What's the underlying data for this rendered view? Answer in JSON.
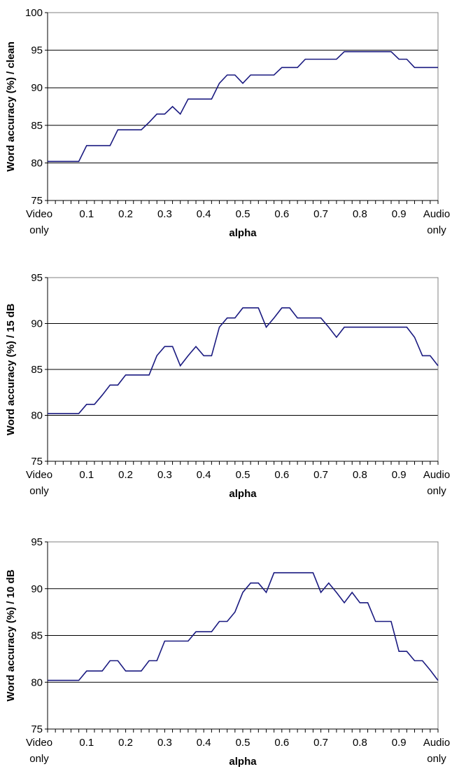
{
  "chart_data": [
    {
      "type": "line",
      "xlabel": "alpha",
      "ylabel": "Word accuracy (%) / clean",
      "ylim": [
        75,
        100
      ],
      "yticks": [
        75,
        80,
        85,
        90,
        95,
        100
      ],
      "xlim": [
        0,
        1
      ],
      "x_ticklabels": [
        {
          "x": 0,
          "lines": [
            "Video",
            "only"
          ]
        },
        {
          "x": 0.1,
          "lines": [
            "0.1"
          ]
        },
        {
          "x": 0.2,
          "lines": [
            "0.2"
          ]
        },
        {
          "x": 0.3,
          "lines": [
            "0.3"
          ]
        },
        {
          "x": 0.4,
          "lines": [
            "0.4"
          ]
        },
        {
          "x": 0.5,
          "lines": [
            "0.5"
          ]
        },
        {
          "x": 0.6,
          "lines": [
            "0.6"
          ]
        },
        {
          "x": 0.7,
          "lines": [
            "0.7"
          ]
        },
        {
          "x": 0.8,
          "lines": [
            "0.8"
          ]
        },
        {
          "x": 0.9,
          "lines": [
            "0.9"
          ]
        },
        {
          "x": 1,
          "lines": [
            "Audio",
            "only"
          ]
        }
      ],
      "grid": "horizontal",
      "color": "#1a1a80",
      "x": [
        0,
        0.02,
        0.04,
        0.06,
        0.08,
        0.1,
        0.12,
        0.14,
        0.16,
        0.18,
        0.2,
        0.22,
        0.24,
        0.26,
        0.28,
        0.3,
        0.32,
        0.34,
        0.36,
        0.38,
        0.4,
        0.42,
        0.44,
        0.46,
        0.48,
        0.5,
        0.52,
        0.54,
        0.56,
        0.58,
        0.6,
        0.62,
        0.64,
        0.66,
        0.68,
        0.7,
        0.72,
        0.74,
        0.76,
        0.78,
        0.8,
        0.82,
        0.84,
        0.86,
        0.88,
        0.9,
        0.92,
        0.94,
        0.96,
        0.98,
        1
      ],
      "values": [
        80.2,
        80.2,
        80.2,
        80.2,
        80.2,
        82.3,
        82.3,
        82.3,
        82.3,
        84.4,
        84.4,
        84.4,
        84.4,
        85.4,
        86.5,
        86.5,
        87.5,
        86.5,
        88.5,
        88.5,
        88.5,
        88.5,
        90.6,
        91.7,
        91.7,
        90.6,
        91.7,
        91.7,
        91.7,
        91.7,
        92.7,
        92.7,
        92.7,
        93.8,
        93.8,
        93.8,
        93.8,
        93.8,
        94.8,
        94.8,
        94.8,
        94.8,
        94.8,
        94.8,
        94.8,
        93.8,
        93.8,
        92.7,
        92.7,
        92.7,
        92.7
      ]
    },
    {
      "type": "line",
      "xlabel": "alpha",
      "ylabel": "Word accuracy (%) / 15 dB",
      "ylim": [
        75,
        95
      ],
      "yticks": [
        75,
        80,
        85,
        90,
        95
      ],
      "xlim": [
        0,
        1
      ],
      "x_ticklabels": [
        {
          "x": 0,
          "lines": [
            "Video",
            "only"
          ]
        },
        {
          "x": 0.1,
          "lines": [
            "0.1"
          ]
        },
        {
          "x": 0.2,
          "lines": [
            "0.2"
          ]
        },
        {
          "x": 0.3,
          "lines": [
            "0.3"
          ]
        },
        {
          "x": 0.4,
          "lines": [
            "0.4"
          ]
        },
        {
          "x": 0.5,
          "lines": [
            "0.5"
          ]
        },
        {
          "x": 0.6,
          "lines": [
            "0.6"
          ]
        },
        {
          "x": 0.7,
          "lines": [
            "0.7"
          ]
        },
        {
          "x": 0.8,
          "lines": [
            "0.8"
          ]
        },
        {
          "x": 0.9,
          "lines": [
            "0.9"
          ]
        },
        {
          "x": 1,
          "lines": [
            "Audio",
            "only"
          ]
        }
      ],
      "grid": "horizontal",
      "color": "#1a1a80",
      "x": [
        0,
        0.02,
        0.04,
        0.06,
        0.08,
        0.1,
        0.12,
        0.14,
        0.16,
        0.18,
        0.2,
        0.22,
        0.24,
        0.26,
        0.28,
        0.3,
        0.32,
        0.34,
        0.36,
        0.38,
        0.4,
        0.42,
        0.44,
        0.46,
        0.48,
        0.5,
        0.52,
        0.54,
        0.56,
        0.58,
        0.6,
        0.62,
        0.64,
        0.66,
        0.68,
        0.7,
        0.72,
        0.74,
        0.76,
        0.78,
        0.8,
        0.82,
        0.84,
        0.86,
        0.88,
        0.9,
        0.92,
        0.94,
        0.96,
        0.98,
        1
      ],
      "values": [
        80.2,
        80.2,
        80.2,
        80.2,
        80.2,
        81.2,
        81.2,
        82.2,
        83.3,
        83.3,
        84.4,
        84.4,
        84.4,
        84.4,
        86.5,
        87.5,
        87.5,
        85.4,
        86.5,
        87.5,
        86.5,
        86.5,
        89.6,
        90.6,
        90.6,
        91.7,
        91.7,
        91.7,
        89.6,
        90.6,
        91.7,
        91.7,
        90.6,
        90.6,
        90.6,
        90.6,
        89.6,
        88.5,
        89.6,
        89.6,
        89.6,
        89.6,
        89.6,
        89.6,
        89.6,
        89.6,
        89.6,
        88.5,
        86.5,
        86.5,
        85.4
      ]
    },
    {
      "type": "line",
      "xlabel": "alpha",
      "ylabel": "Word accuracy (%) / 10 dB",
      "ylim": [
        75,
        95
      ],
      "yticks": [
        75,
        80,
        85,
        90,
        95
      ],
      "xlim": [
        0,
        1
      ],
      "x_ticklabels": [
        {
          "x": 0,
          "lines": [
            "Video",
            "only"
          ]
        },
        {
          "x": 0.1,
          "lines": [
            "0.1"
          ]
        },
        {
          "x": 0.2,
          "lines": [
            "0.2"
          ]
        },
        {
          "x": 0.3,
          "lines": [
            "0.3"
          ]
        },
        {
          "x": 0.4,
          "lines": [
            "0.4"
          ]
        },
        {
          "x": 0.5,
          "lines": [
            "0.5"
          ]
        },
        {
          "x": 0.6,
          "lines": [
            "0.6"
          ]
        },
        {
          "x": 0.7,
          "lines": [
            "0.7"
          ]
        },
        {
          "x": 0.8,
          "lines": [
            "0.8"
          ]
        },
        {
          "x": 0.9,
          "lines": [
            "0.9"
          ]
        },
        {
          "x": 1,
          "lines": [
            "Audio",
            "only"
          ]
        }
      ],
      "grid": "horizontal",
      "color": "#1a1a80",
      "x": [
        0,
        0.02,
        0.04,
        0.06,
        0.08,
        0.1,
        0.12,
        0.14,
        0.16,
        0.18,
        0.2,
        0.22,
        0.24,
        0.26,
        0.28,
        0.3,
        0.32,
        0.34,
        0.36,
        0.38,
        0.4,
        0.42,
        0.44,
        0.46,
        0.48,
        0.5,
        0.52,
        0.54,
        0.56,
        0.58,
        0.6,
        0.62,
        0.64,
        0.66,
        0.68,
        0.7,
        0.72,
        0.74,
        0.76,
        0.78,
        0.8,
        0.82,
        0.84,
        0.86,
        0.88,
        0.9,
        0.92,
        0.94,
        0.96,
        0.98,
        1
      ],
      "values": [
        80.2,
        80.2,
        80.2,
        80.2,
        80.2,
        81.2,
        81.2,
        81.2,
        82.3,
        82.3,
        81.2,
        81.2,
        81.2,
        82.3,
        82.3,
        84.4,
        84.4,
        84.4,
        84.4,
        85.4,
        85.4,
        85.4,
        86.5,
        86.5,
        87.5,
        89.6,
        90.6,
        90.6,
        89.6,
        91.7,
        91.7,
        91.7,
        91.7,
        91.7,
        91.7,
        89.6,
        90.6,
        89.6,
        88.5,
        89.6,
        88.5,
        88.5,
        86.5,
        86.5,
        86.5,
        83.3,
        83.3,
        82.3,
        82.3,
        81.3,
        80.2
      ]
    }
  ]
}
